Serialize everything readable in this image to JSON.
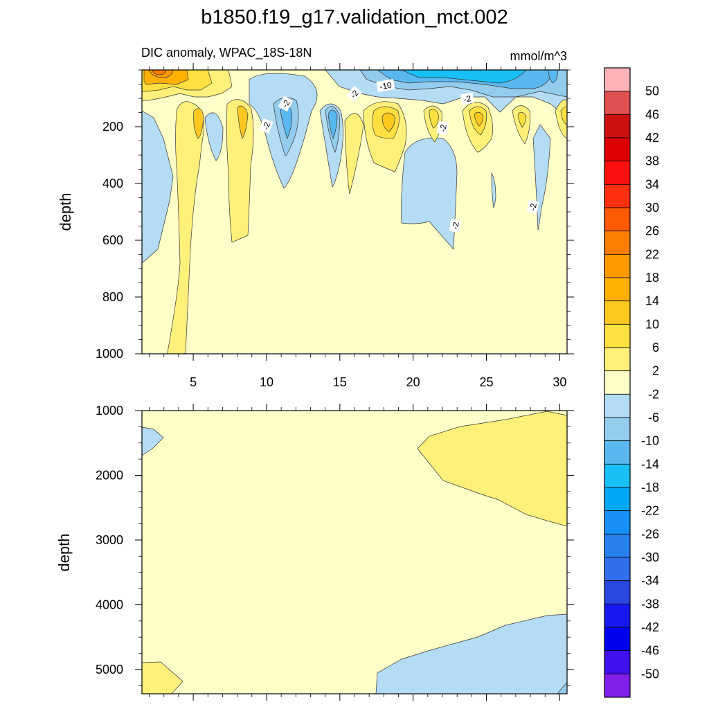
{
  "chart_data": {
    "type": "contour",
    "title": "b1850.f19_g17.validation_mct.002",
    "subtitle_left": "DIC anomaly, WPAC_18S-18N",
    "subtitle_right": "mmol/m^3",
    "xlim": [
      1.5,
      30.5
    ],
    "x_ticks": [
      5,
      10,
      15,
      20,
      25,
      30
    ],
    "x_tick_labels": [
      "5",
      "10",
      "15",
      "20",
      "25",
      "30"
    ],
    "top_panel": {
      "ylabel": "depth",
      "ylim": [
        1000,
        0
      ],
      "y_ticks": [
        200,
        400,
        600,
        800,
        1000
      ],
      "y_tick_labels": [
        "200",
        "400",
        "600",
        "800",
        "1000"
      ],
      "contour_labels": [
        "-2",
        "-2",
        "-10",
        "-2",
        "-2",
        "-2",
        "-2",
        "-2"
      ]
    },
    "bottom_panel": {
      "ylabel": "depth",
      "ylim": [
        5375,
        1000
      ],
      "y_ticks": [
        1000,
        2000,
        3000,
        4000,
        5000
      ],
      "y_tick_labels": [
        "1000",
        "2000",
        "3000",
        "4000",
        "5000"
      ]
    },
    "colorbar": {
      "labels": [
        "50",
        "46",
        "42",
        "38",
        "34",
        "30",
        "26",
        "22",
        "18",
        "14",
        "10",
        "6",
        "2",
        "-2",
        "-6",
        "-10",
        "-14",
        "-18",
        "-22",
        "-26",
        "-30",
        "-34",
        "-38",
        "-42",
        "-46",
        "-50"
      ],
      "colors": [
        "#ffb3b8",
        "#e05050",
        "#cc1010",
        "#dd0000",
        "#ff1010",
        "#ff3010",
        "#ff5a00",
        "#ff7e00",
        "#ff9a00",
        "#ffb000",
        "#ffc820",
        "#ffe040",
        "#fff07a",
        "#ffffc8",
        "#b4dcf4",
        "#94ccee",
        "#5ab8f0",
        "#18c0f8",
        "#00a8f8",
        "#1890f8",
        "#2880f0",
        "#3070ee",
        "#2848e0",
        "#1818f0",
        "#0000f0",
        "#4010f0",
        "#8020e8"
      ]
    }
  }
}
